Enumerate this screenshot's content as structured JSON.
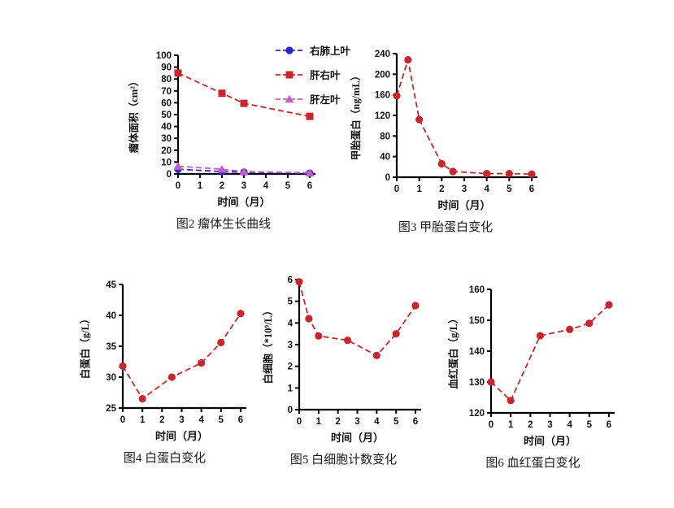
{
  "page": {
    "background": "#ffffff"
  },
  "colors": {
    "axis": "#000000",
    "red": "#c8252c",
    "blue": "#2b25c8",
    "magenta": "#c360c8"
  },
  "chart_data": [
    {
      "id": "fig2",
      "type": "line",
      "title": "图2 瘤体生长曲线",
      "xlabel": "时间（月）",
      "ylabel": "瘤体面积（cm²）",
      "xlim": [
        0,
        6
      ],
      "xticks": [
        0,
        1,
        2,
        3,
        4,
        5,
        6
      ],
      "ylim": [
        0,
        100
      ],
      "yticks": [
        0,
        10,
        20,
        30,
        40,
        50,
        60,
        70,
        80,
        90,
        100
      ],
      "grid": false,
      "legend_position": "right-top",
      "series": [
        {
          "name": "右肺上叶",
          "color": "#2b25c8",
          "marker": "circle",
          "linestyle": "dashed",
          "x": [
            0,
            2,
            3,
            6
          ],
          "y": [
            4,
            2,
            1.5,
            0.5
          ]
        },
        {
          "name": "肝右叶",
          "color": "#c8252c",
          "marker": "square",
          "linestyle": "dashed",
          "x": [
            0,
            2,
            3,
            6
          ],
          "y": [
            85,
            68,
            59.5,
            48.5
          ]
        },
        {
          "name": "肝左叶",
          "color": "#c360c8",
          "marker": "triangle",
          "linestyle": "dashed",
          "x": [
            0,
            2,
            3,
            6
          ],
          "y": [
            6.5,
            4,
            2,
            1
          ]
        }
      ]
    },
    {
      "id": "fig3",
      "type": "line",
      "title": "图3 甲胎蛋白变化",
      "xlabel": "时间（月）",
      "ylabel": "甲胎蛋白（ng/mL）",
      "xlim": [
        0,
        6
      ],
      "xticks": [
        0,
        1,
        2,
        3,
        4,
        5,
        6
      ],
      "ylim": [
        0,
        240
      ],
      "yticks": [
        0,
        40,
        80,
        120,
        160,
        200,
        240
      ],
      "grid": false,
      "series": [
        {
          "name": "甲胎蛋白",
          "color": "#c8252c",
          "marker": "circle",
          "linestyle": "dashed",
          "x": [
            0,
            0.5,
            1,
            2,
            2.5,
            4,
            5,
            6
          ],
          "y": [
            158,
            228,
            112,
            26,
            11,
            7,
            7,
            6
          ]
        }
      ]
    },
    {
      "id": "fig4",
      "type": "line",
      "title": "图4 白蛋白变化",
      "xlabel": "时间（月）",
      "ylabel": "白蛋白（g/L）",
      "xlim": [
        0,
        6
      ],
      "xticks": [
        0,
        1,
        2,
        3,
        4,
        5,
        6
      ],
      "ylim": [
        25,
        45
      ],
      "yticks": [
        25,
        30,
        35,
        40,
        45
      ],
      "grid": false,
      "series": [
        {
          "name": "白蛋白",
          "color": "#c8252c",
          "marker": "circle",
          "linestyle": "dashed",
          "x": [
            0,
            1,
            2.5,
            4,
            5,
            6
          ],
          "y": [
            31.8,
            26.5,
            30,
            32.3,
            35.6,
            40.3
          ]
        }
      ]
    },
    {
      "id": "fig5",
      "type": "line",
      "title": "图5 白细胞计数变化",
      "xlabel": "时间（月）",
      "ylabel": "白细胞（*10⁹/L）",
      "xlim": [
        0,
        6
      ],
      "xticks": [
        0,
        1,
        2,
        3,
        4,
        5,
        6
      ],
      "ylim": [
        0,
        6
      ],
      "yticks": [
        0,
        1,
        2,
        3,
        4,
        5,
        6
      ],
      "grid": false,
      "series": [
        {
          "name": "白细胞",
          "color": "#c8252c",
          "marker": "circle",
          "linestyle": "dashed",
          "x": [
            0,
            0.5,
            1,
            2.5,
            4,
            5,
            6
          ],
          "y": [
            5.9,
            4.2,
            3.4,
            3.2,
            2.5,
            3.5,
            4.8
          ]
        }
      ]
    },
    {
      "id": "fig6",
      "type": "line",
      "title": "图6 血红蛋白变化",
      "xlabel": "时间（月）",
      "ylabel": "血红蛋白（g/L）",
      "xlim": [
        0,
        6
      ],
      "xticks": [
        0,
        1,
        2,
        3,
        4,
        5,
        6
      ],
      "ylim": [
        120,
        160
      ],
      "yticks": [
        120,
        130,
        140,
        150,
        160
      ],
      "grid": false,
      "series": [
        {
          "name": "血红蛋白",
          "color": "#c8252c",
          "marker": "circle",
          "linestyle": "dashed",
          "x": [
            0,
            1,
            2.5,
            4,
            5,
            6
          ],
          "y": [
            130,
            124,
            145,
            147,
            149,
            155
          ]
        }
      ]
    }
  ]
}
